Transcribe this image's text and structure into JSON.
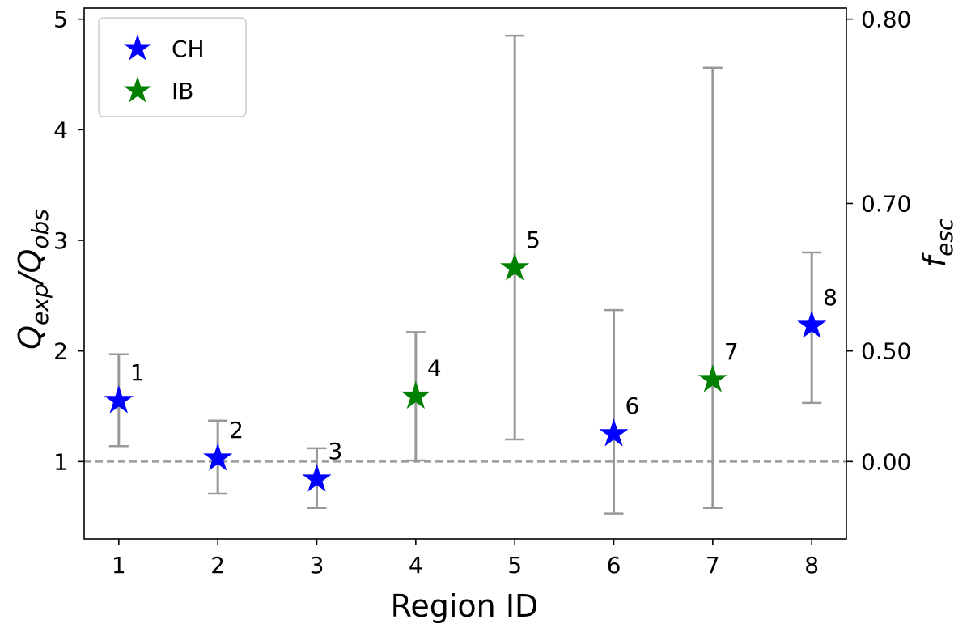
{
  "chart_data": {
    "type": "scatter",
    "xlabel": "Region ID",
    "ylabel": "Q_exp/Q_obs",
    "ylabel_main": "Q",
    "ylabel_sub1": "exp",
    "ylabel_slash": "/Q",
    "ylabel_sub2": "obs",
    "y2label": "f_esc",
    "y2label_main": "f",
    "y2label_sub": "esc",
    "xlim": [
      0.65,
      8.35
    ],
    "ylim": [
      0.3,
      5.1
    ],
    "x_ticks": [
      1,
      2,
      3,
      4,
      5,
      6,
      7,
      8
    ],
    "x_tick_labels": [
      "1",
      "2",
      "3",
      "4",
      "5",
      "6",
      "7",
      "8"
    ],
    "y_ticks": [
      1,
      2,
      3,
      4,
      5
    ],
    "y_tick_labels": [
      "1",
      "2",
      "3",
      "4",
      "5"
    ],
    "y2_ticks": [
      {
        "label": "0.00",
        "q": 1.0
      },
      {
        "label": "0.50",
        "q": 2.0
      },
      {
        "label": "0.70",
        "q": 3.3333
      },
      {
        "label": "0.80",
        "q": 5.0
      }
    ],
    "reference_line": {
      "y": 1.0,
      "color": "#999999",
      "style": "dashed"
    },
    "errorbar_color": "#999999",
    "series": [
      {
        "name": "CH",
        "color": "#0000ff",
        "marker": "star"
      },
      {
        "name": "IB",
        "color": "#008000",
        "marker": "star"
      }
    ],
    "points": [
      {
        "id": "1",
        "x": 1,
        "y": 1.55,
        "low": 1.14,
        "high": 1.97,
        "series": "CH"
      },
      {
        "id": "2",
        "x": 2,
        "y": 1.03,
        "low": 0.71,
        "high": 1.37,
        "series": "CH"
      },
      {
        "id": "3",
        "x": 3,
        "y": 0.84,
        "low": 0.58,
        "high": 1.12,
        "series": "CH"
      },
      {
        "id": "4",
        "x": 4,
        "y": 1.59,
        "low": 1.01,
        "high": 2.17,
        "series": "IB"
      },
      {
        "id": "5",
        "x": 5,
        "y": 2.75,
        "low": 1.2,
        "high": 4.85,
        "series": "IB"
      },
      {
        "id": "6",
        "x": 6,
        "y": 1.25,
        "low": 0.53,
        "high": 2.37,
        "series": "CH"
      },
      {
        "id": "7",
        "x": 7,
        "y": 1.74,
        "low": 0.58,
        "high": 4.56,
        "series": "IB"
      },
      {
        "id": "8",
        "x": 8,
        "y": 2.23,
        "low": 1.53,
        "high": 2.89,
        "series": "CH"
      }
    ],
    "legend": {
      "location": "upper-left",
      "entries": [
        "CH",
        "IB"
      ]
    },
    "grid": false
  }
}
